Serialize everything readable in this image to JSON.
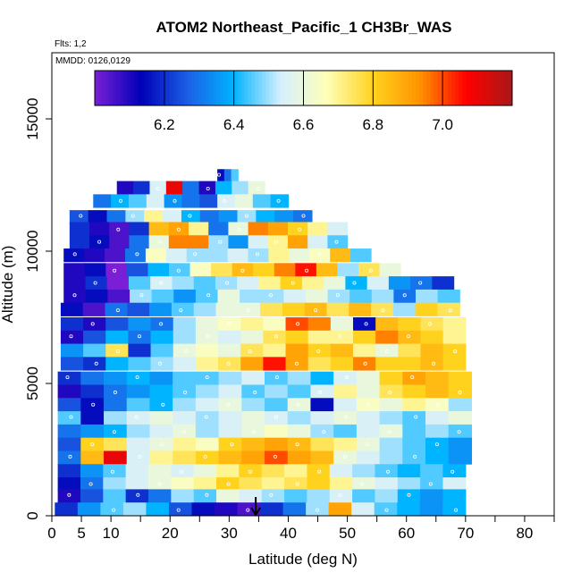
{
  "chart_data": {
    "type": "heatmap",
    "title": "ATOM2 Northeast_Pacific_1 CH3Br_WAS",
    "flights_label": "Flts: 1,2",
    "dates_label": "MMDD: 0126,0129",
    "xlabel": "Latitude (deg N)",
    "ylabel": "Altitude (m)",
    "xlim": [
      0,
      85
    ],
    "ylim": [
      0,
      17500
    ],
    "x_ticks": [
      0,
      5,
      10,
      20,
      30,
      40,
      50,
      60,
      70,
      80
    ],
    "y_ticks": [
      0,
      5000,
      10000,
      15000
    ],
    "colorbar": {
      "range": [
        6.0,
        7.2
      ],
      "ticks": [
        6.2,
        6.4,
        6.6,
        6.8,
        7.0
      ],
      "tick_labels": [
        "6.2",
        "6.4",
        "6.6",
        "6.8",
        "7.0"
      ],
      "colors": [
        "#7a1fd6",
        "#0000b8",
        "#1c5fe6",
        "#00b4ff",
        "#d4efff",
        "#ffffb8",
        "#ffd21e",
        "#ff9400",
        "#ff0000",
        "#a81818"
      ]
    },
    "marker": {
      "latitude": 34.5,
      "label": "arrow"
    },
    "bands": [
      {
        "alt": 12850,
        "lat_start": 28,
        "lat_end": 31.5,
        "values": [
          6.15,
          6.3,
          6.45
        ]
      },
      {
        "alt": 12400,
        "lat_start": 11,
        "lat_end": 36,
        "values": [
          6.1,
          6.2,
          6.55,
          7.1,
          6.3,
          6.1,
          6.4,
          6.5,
          6.6
        ]
      },
      {
        "alt": 11900,
        "lat_start": 7,
        "lat_end": 40,
        "values": [
          6.3,
          6.4,
          6.45,
          6.55,
          6.35,
          6.3,
          6.25,
          6.55,
          6.6,
          6.45,
          6.4
        ]
      },
      {
        "alt": 11300,
        "lat_start": 3,
        "lat_end": 44,
        "values": [
          6.25,
          6.15,
          6.3,
          6.5,
          6.7,
          6.55,
          6.4,
          6.3,
          6.35,
          6.5,
          6.4,
          6.35,
          6.3
        ]
      },
      {
        "alt": 10850,
        "lat_start": 3,
        "lat_end": 50,
        "values": [
          6.2,
          6.1,
          6.05,
          6.2,
          6.85,
          6.9,
          6.7,
          6.3,
          6.6,
          6.95,
          6.9,
          6.8,
          6.7,
          6.55
        ]
      },
      {
        "alt": 10350,
        "lat_start": 3,
        "lat_end": 50,
        "values": [
          6.2,
          6.15,
          6.05,
          6.3,
          6.6,
          6.95,
          6.95,
          6.5,
          6.35,
          6.55,
          6.7,
          6.9,
          6.55,
          6.45
        ]
      },
      {
        "alt": 9850,
        "lat_start": 2,
        "lat_end": 54,
        "values": [
          6.15,
          6.1,
          6.05,
          6.3,
          6.65,
          6.55,
          6.5,
          6.5,
          6.55,
          6.5,
          6.7,
          6.6,
          6.65,
          6.85,
          6.45
        ]
      },
      {
        "alt": 9300,
        "lat_start": 2,
        "lat_end": 59,
        "values": [
          6.1,
          6.15,
          6.0,
          6.25,
          6.4,
          6.45,
          6.65,
          6.75,
          6.85,
          6.8,
          6.95,
          7.05,
          6.85,
          6.5,
          6.75,
          6.6
        ]
      },
      {
        "alt": 8800,
        "lat_start": 2,
        "lat_end": 68,
        "values": [
          6.1,
          6.2,
          6.0,
          6.45,
          6.55,
          6.5,
          6.45,
          6.5,
          6.55,
          6.7,
          6.8,
          6.7,
          6.6,
          6.4,
          6.55,
          6.35,
          6.3,
          6.2
        ]
      },
      {
        "alt": 8300,
        "lat_start": 2,
        "lat_end": 69,
        "values": [
          6.1,
          6.15,
          6.05,
          6.5,
          6.45,
          6.35,
          6.45,
          6.6,
          6.5,
          6.5,
          6.55,
          6.6,
          6.5,
          6.45,
          6.5,
          6.3,
          6.5,
          6.45
        ]
      },
      {
        "alt": 7800,
        "lat_start": 1.5,
        "lat_end": 69,
        "values": [
          6.15,
          6.05,
          6.3,
          6.25,
          6.35,
          6.45,
          6.5,
          6.6,
          6.6,
          6.75,
          6.8,
          6.85,
          6.75,
          6.85,
          6.75,
          6.5,
          6.8,
          6.75
        ]
      },
      {
        "alt": 7250,
        "lat_start": 1.5,
        "lat_end": 70,
        "values": [
          6.2,
          6.1,
          6.25,
          6.35,
          6.3,
          6.5,
          6.6,
          6.65,
          6.7,
          6.65,
          7.0,
          6.95,
          6.6,
          6.15,
          6.85,
          6.8,
          6.75,
          6.7
        ]
      },
      {
        "alt": 6750,
        "lat_start": 1.5,
        "lat_end": 70,
        "values": [
          6.1,
          6.25,
          6.4,
          6.3,
          6.4,
          6.5,
          6.6,
          6.55,
          6.6,
          6.75,
          6.8,
          6.7,
          6.7,
          6.8,
          6.95,
          6.85,
          6.8,
          6.7
        ]
      },
      {
        "alt": 6250,
        "lat_start": 1.5,
        "lat_end": 70,
        "values": [
          6.35,
          6.45,
          6.75,
          6.2,
          6.45,
          6.6,
          6.65,
          6.6,
          6.75,
          6.7,
          6.9,
          6.8,
          6.85,
          6.7,
          6.6,
          6.75,
          6.85,
          6.8
        ]
      },
      {
        "alt": 5750,
        "lat_start": 1.5,
        "lat_end": 70,
        "values": [
          6.25,
          6.2,
          6.4,
          6.45,
          6.5,
          6.55,
          6.7,
          6.75,
          6.9,
          7.05,
          6.9,
          6.75,
          6.8,
          6.95,
          6.8,
          6.8,
          6.85,
          6.8
        ]
      },
      {
        "alt": 5200,
        "lat_start": 1,
        "lat_end": 71,
        "values": [
          6.2,
          6.3,
          6.35,
          6.4,
          6.35,
          6.45,
          6.45,
          6.5,
          6.55,
          6.45,
          6.5,
          6.4,
          6.55,
          6.6,
          6.8,
          6.9,
          6.85,
          6.8
        ]
      },
      {
        "alt": 4700,
        "lat_start": 1,
        "lat_end": 71,
        "values": [
          6.1,
          6.2,
          6.3,
          6.35,
          6.4,
          6.45,
          6.5,
          6.55,
          6.45,
          6.5,
          6.45,
          6.55,
          6.7,
          6.6,
          6.75,
          6.8,
          6.85,
          6.8
        ]
      },
      {
        "alt": 4200,
        "lat_start": 1,
        "lat_end": 71,
        "values": [
          6.25,
          6.15,
          6.3,
          6.45,
          6.4,
          6.5,
          6.55,
          6.6,
          6.5,
          6.45,
          6.6,
          6.15,
          6.55,
          6.65,
          6.6,
          6.7,
          6.65,
          6.5
        ]
      },
      {
        "alt": 3700,
        "lat_start": 1,
        "lat_end": 71,
        "values": [
          6.45,
          6.15,
          6.5,
          6.55,
          6.6,
          6.55,
          6.5,
          6.55,
          6.6,
          6.55,
          6.5,
          6.55,
          6.6,
          6.55,
          6.5,
          6.45,
          6.55,
          6.6
        ]
      },
      {
        "alt": 3200,
        "lat_start": 1,
        "lat_end": 71,
        "values": [
          6.3,
          6.35,
          6.4,
          6.5,
          6.55,
          6.6,
          6.5,
          6.55,
          6.6,
          6.65,
          6.6,
          6.5,
          6.45,
          6.55,
          6.6,
          6.45,
          6.5,
          6.45
        ]
      },
      {
        "alt": 2700,
        "lat_start": 1,
        "lat_end": 71,
        "values": [
          6.25,
          6.8,
          6.75,
          6.55,
          6.6,
          6.7,
          6.65,
          6.8,
          6.85,
          6.9,
          6.85,
          6.75,
          6.7,
          6.6,
          6.5,
          6.45,
          6.4,
          6.35
        ]
      },
      {
        "alt": 2200,
        "lat_start": 1,
        "lat_end": 71,
        "values": [
          6.3,
          6.85,
          7.1,
          6.55,
          6.7,
          6.75,
          6.8,
          6.85,
          6.9,
          7.0,
          6.9,
          6.85,
          6.6,
          6.55,
          6.5,
          6.45,
          6.4,
          6.35
        ]
      },
      {
        "alt": 1700,
        "lat_start": 1,
        "lat_end": 70,
        "values": [
          6.2,
          6.35,
          6.45,
          6.55,
          6.6,
          6.55,
          6.6,
          6.7,
          6.8,
          6.75,
          6.7,
          6.8,
          6.55,
          6.5,
          6.45,
          6.4,
          6.45,
          6.4
        ]
      },
      {
        "alt": 1200,
        "lat_start": 1,
        "lat_end": 70,
        "values": [
          6.15,
          6.3,
          6.5,
          6.55,
          6.6,
          6.65,
          6.7,
          6.8,
          6.75,
          6.7,
          6.75,
          6.8,
          6.7,
          6.6,
          6.55,
          6.5,
          6.45,
          6.55
        ]
      },
      {
        "alt": 750,
        "lat_start": 1,
        "lat_end": 70,
        "values": [
          6.1,
          6.25,
          6.45,
          6.2,
          6.3,
          6.5,
          6.45,
          6.6,
          6.55,
          6.5,
          6.45,
          6.5,
          6.55,
          6.45,
          6.5,
          6.4,
          6.35,
          6.4
        ]
      },
      {
        "alt": 250,
        "lat_start": 0.5,
        "lat_end": 70,
        "values": [
          6.2,
          6.35,
          6.45,
          6.5,
          6.4,
          6.25,
          6.15,
          6.1,
          6.05,
          6.2,
          6.3,
          6.5,
          6.9,
          6.55,
          6.45,
          6.4,
          6.35,
          6.4
        ]
      }
    ]
  }
}
